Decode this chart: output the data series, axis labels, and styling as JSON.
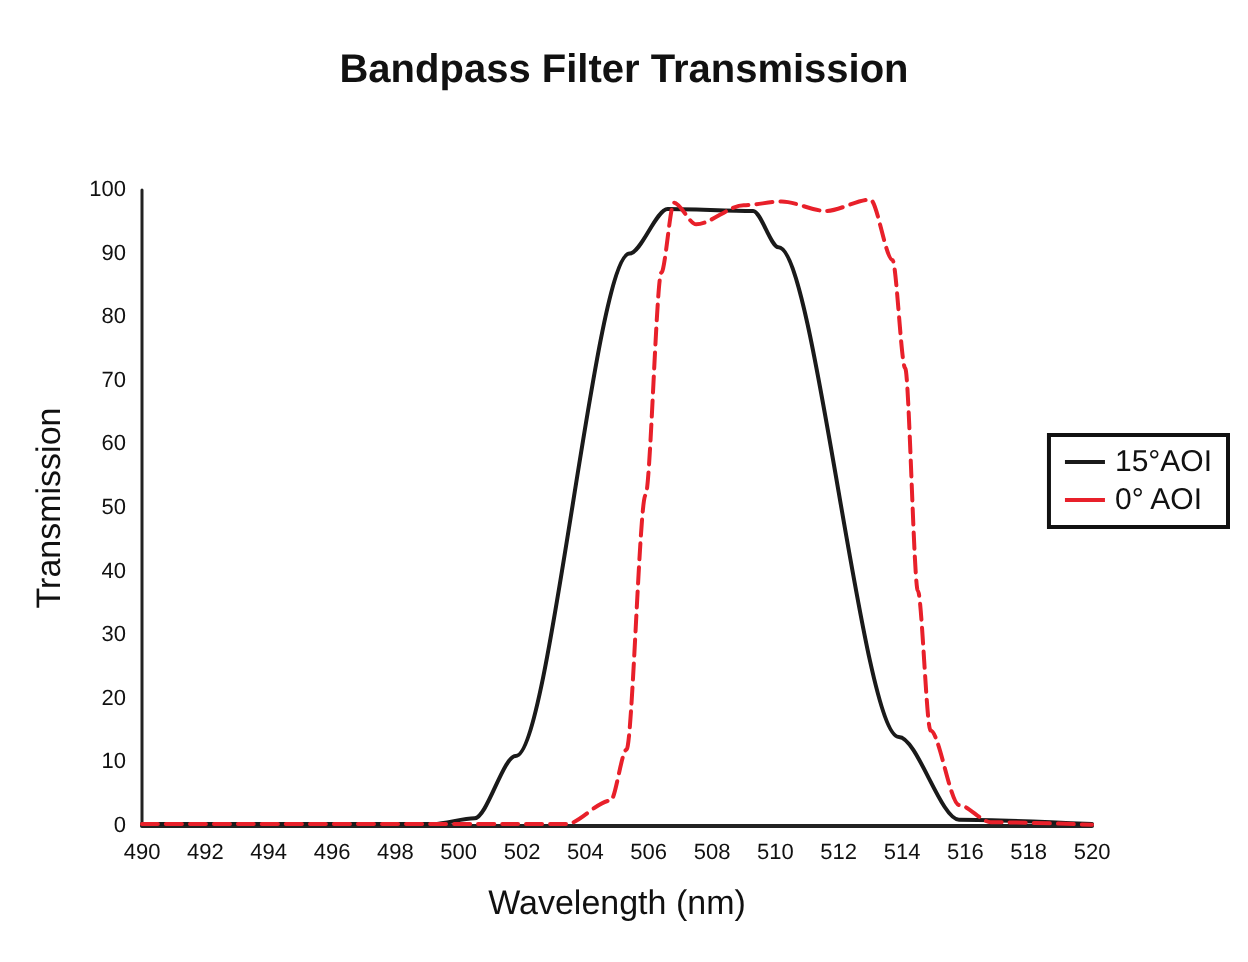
{
  "chart_data": {
    "type": "line",
    "title": "Bandpass Filter Transmission",
    "xlabel": "Wavelength (nm)",
    "ylabel": "Transmission",
    "xlim": [
      490,
      520
    ],
    "xticks": [
      490,
      492,
      494,
      496,
      498,
      500,
      502,
      504,
      506,
      508,
      510,
      512,
      514,
      516,
      518,
      520
    ],
    "ylim": [
      0,
      100
    ],
    "yticks": [
      0,
      10,
      20,
      30,
      40,
      50,
      60,
      70,
      80,
      90,
      100
    ],
    "grid": false,
    "legend": "right",
    "marker": "none",
    "series": [
      {
        "name": "15°AOI",
        "color": "#1a1a1a",
        "line_style": "solid",
        "x": [
          490,
          499.2,
          500.5,
          501.8,
          505.4,
          506.6,
          509.3,
          510.1,
          513.9,
          515.8,
          520
        ],
        "values": [
          0.3,
          0.3,
          1.2,
          11,
          90,
          97,
          96.7,
          91,
          14,
          1,
          0.3
        ]
      },
      {
        "name": "0° AOI",
        "color": "#e8202a",
        "line_style": "dashed",
        "x": [
          490,
          503.4,
          504.8,
          505.3,
          505.9,
          506.4,
          506.8,
          507.5,
          509.0,
          510.2,
          511.6,
          513.0,
          513.7,
          514.1,
          514.5,
          514.9,
          515.8,
          516.8,
          520
        ],
        "values": [
          0.3,
          0.3,
          4,
          12,
          52,
          87,
          98,
          94.6,
          97.6,
          98.2,
          96.7,
          98.5,
          89,
          72,
          37,
          15,
          3.3,
          0.6,
          0.2
        ]
      }
    ]
  }
}
